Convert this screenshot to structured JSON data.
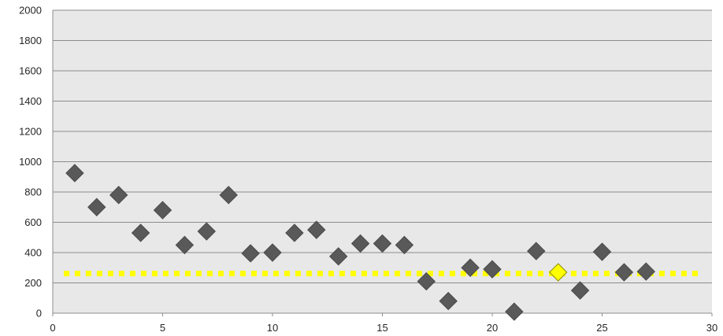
{
  "chart_data": {
    "type": "scatter",
    "xlim": [
      0,
      30
    ],
    "ylim": [
      0,
      2000
    ],
    "xticks": [
      0,
      5,
      10,
      15,
      20,
      25,
      30
    ],
    "yticks": [
      0,
      200,
      400,
      600,
      800,
      1000,
      1200,
      1400,
      1600,
      1800,
      2000
    ],
    "grid": "horizontal",
    "legend": "none",
    "series": [
      {
        "marker": "diamond",
        "color": "#595959",
        "points": [
          [
            1,
            925
          ],
          [
            2,
            700
          ],
          [
            3,
            780
          ],
          [
            4,
            530
          ],
          [
            5,
            680
          ],
          [
            6,
            450
          ],
          [
            7,
            540
          ],
          [
            8,
            780
          ],
          [
            9,
            395
          ],
          [
            10,
            400
          ],
          [
            11,
            530
          ],
          [
            12,
            550
          ],
          [
            13,
            375
          ],
          [
            14,
            460
          ],
          [
            15,
            460
          ],
          [
            16,
            450
          ],
          [
            17,
            210
          ],
          [
            18,
            80
          ],
          [
            19,
            300
          ],
          [
            20,
            290
          ],
          [
            21,
            10
          ],
          [
            22,
            410
          ],
          [
            24,
            150
          ],
          [
            25,
            405
          ],
          [
            26,
            270
          ],
          [
            27,
            275
          ]
        ]
      },
      {
        "marker": "diamond",
        "color": "#ffff00",
        "points": [
          [
            23,
            270
          ]
        ]
      }
    ],
    "reference_line": {
      "y": 262,
      "x_range": [
        0.5,
        29.5
      ],
      "color": "#ffff00",
      "style": "dotted"
    }
  }
}
